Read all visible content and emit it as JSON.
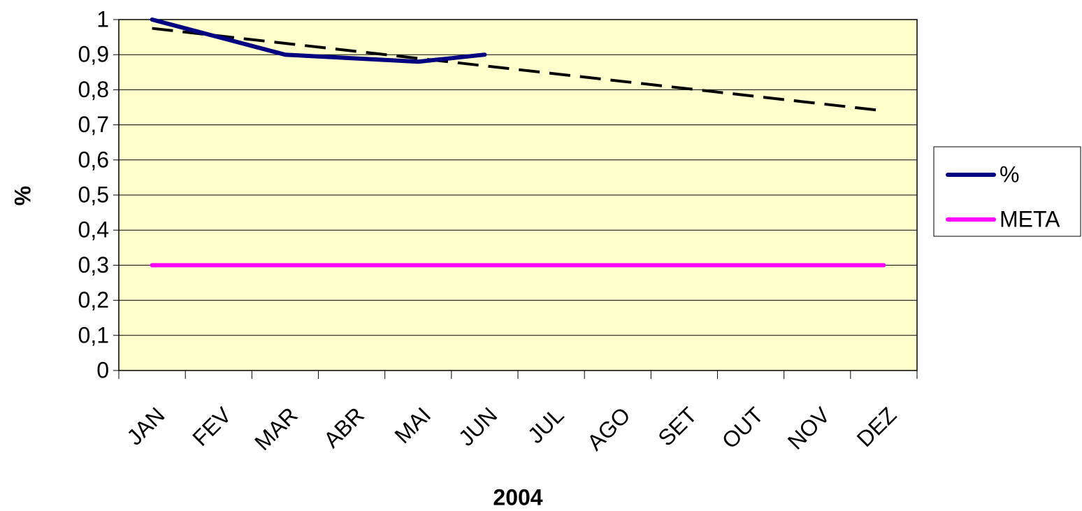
{
  "chart_data": {
    "type": "line",
    "y_label": "%",
    "x_label": "2004",
    "categories": [
      "JAN",
      "FEV",
      "MAR",
      "ABR",
      "MAI",
      "JUN",
      "JUL",
      "AGO",
      "SET",
      "OUT",
      "NOV",
      "DEZ"
    ],
    "series": [
      {
        "name": "%",
        "color": "#000080",
        "values": [
          1,
          0.95,
          0.9,
          0.89,
          0.88,
          0.9,
          null,
          null,
          null,
          null,
          null,
          null
        ]
      },
      {
        "name": "META",
        "color": "#ff00ff",
        "values": [
          0.3,
          0.3,
          0.3,
          0.3,
          0.3,
          0.3,
          0.3,
          0.3,
          0.3,
          0.3,
          0.3,
          0.3
        ]
      }
    ],
    "trendline": {
      "values": [
        0.975,
        0.74
      ],
      "color": "#000000",
      "dashed": true
    },
    "ylim": [
      0,
      1
    ],
    "yticks": [
      0,
      {
        "value": 0.1,
        "label": "0,1"
      },
      {
        "value": 0.2,
        "label": "0,2"
      },
      {
        "value": 0.3,
        "label": "0,3"
      },
      {
        "value": 0.4,
        "label": "0,4"
      },
      {
        "value": 0.5,
        "label": "0,5"
      },
      {
        "value": 0.6,
        "label": "0,6"
      },
      {
        "value": 0.7,
        "label": "0,7"
      },
      {
        "value": 0.8,
        "label": "0,8"
      },
      {
        "value": 0.9,
        "label": "0,9"
      },
      1
    ],
    "grid": true,
    "plot_background": "#ffffcc",
    "legend": "right"
  }
}
